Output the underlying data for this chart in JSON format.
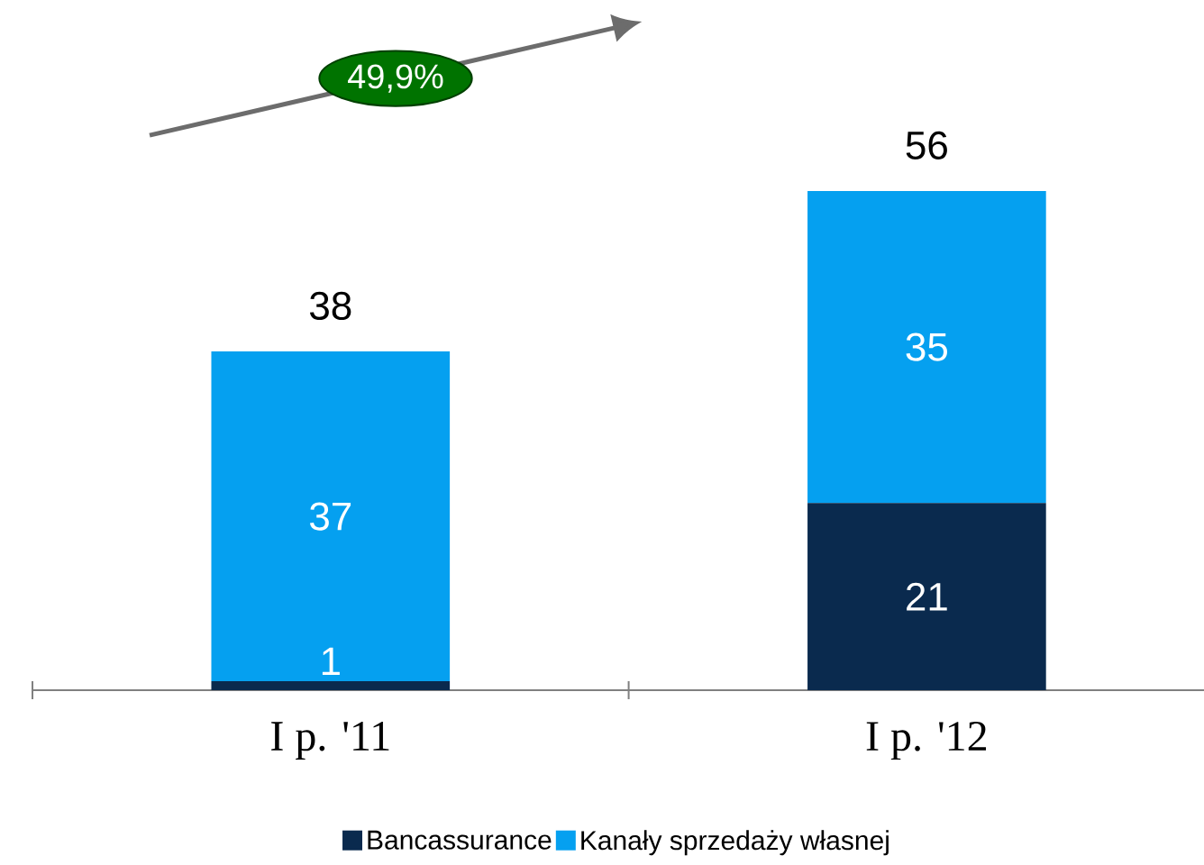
{
  "chart_data": {
    "type": "bar",
    "stacked": true,
    "categories": [
      "I p. '11",
      "I p. '12"
    ],
    "series": [
      {
        "name": "Bancassurance",
        "color": "#0a2a4e",
        "values": [
          1,
          21
        ]
      },
      {
        "name": "Kanały sprzedaży własnej",
        "color": "#05a0f0",
        "values": [
          37,
          35
        ]
      }
    ],
    "tick_labels": "x",
    "data_labels": true,
    "totals": [
      "38",
      "56"
    ],
    "annotations": [
      "49,9%"
    ],
    "legend": "bottom"
  }
}
